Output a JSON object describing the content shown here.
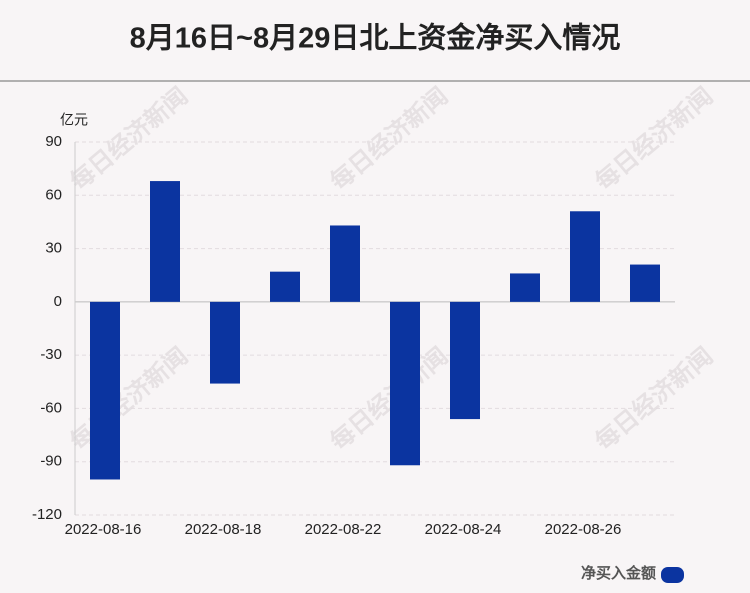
{
  "chart_data": {
    "type": "bar",
    "title": "8月16日~8月29日北上资金净买入情况",
    "y_axis_label": "亿元",
    "watermark": "每日经济新闻",
    "categories": [
      "2022-08-16",
      null,
      "2022-08-18",
      null,
      "2022-08-22",
      null,
      "2022-08-24",
      null,
      "2022-08-26",
      null
    ],
    "series": [
      {
        "name": "净买入金额",
        "color": "#0b34a0",
        "values": [
          -100,
          68,
          -46,
          17,
          43,
          -92,
          -66,
          16,
          51,
          21
        ]
      }
    ],
    "ylim": [
      -120,
      90
    ],
    "yticks": [
      -120,
      -90,
      -60,
      -30,
      0,
      30,
      60,
      90
    ],
    "grid": true,
    "legend": "bottom-right"
  }
}
